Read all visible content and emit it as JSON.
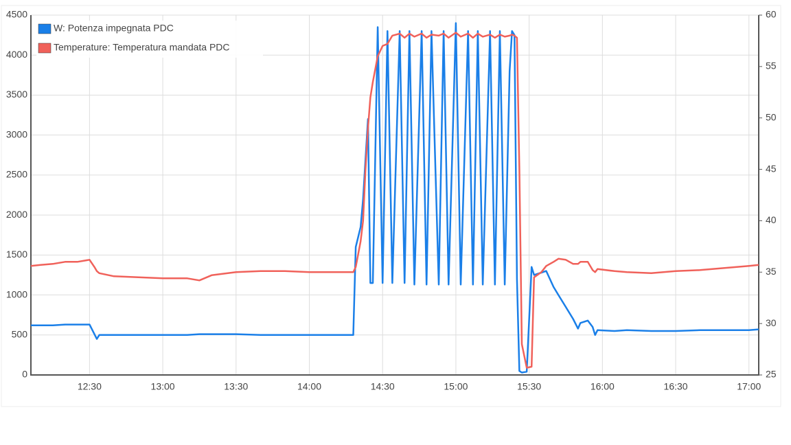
{
  "chart_data": {
    "type": "line",
    "x": [
      "12:06",
      "12:10",
      "12:15",
      "12:20",
      "12:25",
      "12:30",
      "12:32",
      "12:33",
      "12:34",
      "12:40",
      "12:50",
      "13:00",
      "13:10",
      "13:15",
      "13:20",
      "13:30",
      "13:40",
      "13:50",
      "14:00",
      "14:10",
      "14:18",
      "14:19",
      "14:21",
      "14:22",
      "14:23",
      "14:24",
      "14:25",
      "14:26",
      "14:28",
      "14:30",
      "14:32",
      "14:34",
      "14:37",
      "14:39",
      "14:41",
      "14:43",
      "14:46",
      "14:48",
      "14:50",
      "14:53",
      "14:55",
      "14:57",
      "15:00",
      "15:02",
      "15:05",
      "15:07",
      "15:09",
      "15:11",
      "15:14",
      "15:16",
      "15:18",
      "15:20",
      "15:22",
      "15:23",
      "15:24",
      "15:25",
      "15:26",
      "15:27",
      "15:29",
      "15:31",
      "15:32",
      "15:35",
      "15:37",
      "15:40",
      "15:42",
      "15:45",
      "15:48",
      "15:50",
      "15:51",
      "15:54",
      "15:56",
      "15:57",
      "15:58",
      "16:05",
      "16:10",
      "16:20",
      "16:30",
      "16:40",
      "16:50",
      "17:00",
      "17:04"
    ],
    "series": [
      {
        "name": "W: Potenza impegnata PDC",
        "color": "#1a7fe8",
        "values": [
          620,
          620,
          620,
          630,
          630,
          630,
          510,
          450,
          500,
          500,
          500,
          500,
          500,
          510,
          510,
          510,
          500,
          500,
          500,
          500,
          500,
          1600,
          1850,
          2200,
          2700,
          3200,
          1150,
          1150,
          4350,
          1150,
          4300,
          1150,
          4300,
          1150,
          4300,
          1130,
          4300,
          1130,
          4300,
          1130,
          4300,
          1130,
          4400,
          1130,
          4300,
          1130,
          4300,
          1130,
          4300,
          1130,
          4300,
          1130,
          3800,
          4300,
          4250,
          1200,
          50,
          30,
          40,
          1350,
          1250,
          1280,
          1300,
          1100,
          1000,
          850,
          700,
          580,
          650,
          680,
          600,
          500,
          560,
          550,
          560,
          550,
          550,
          560,
          560,
          560,
          570
        ]
      },
      {
        "name": "Temperature: Temperatura mandata PDC",
        "color": "#f0615a",
        "axis": "y2",
        "values": [
          35.6,
          35.7,
          35.8,
          36.0,
          36.0,
          36.2,
          35.5,
          35.1,
          34.9,
          34.6,
          34.5,
          34.4,
          34.4,
          34.2,
          34.7,
          35.0,
          35.1,
          35.1,
          35.0,
          35.0,
          35.0,
          35.5,
          38.0,
          40.0,
          45.0,
          49.0,
          52.0,
          53.5,
          56.0,
          57.0,
          57.2,
          58.0,
          58.2,
          57.8,
          58.2,
          57.9,
          58.2,
          57.8,
          58.1,
          58.0,
          58.2,
          57.8,
          58.3,
          57.9,
          58.2,
          57.8,
          58.2,
          57.9,
          58.1,
          57.8,
          58.1,
          57.9,
          58.0,
          58.1,
          58.0,
          57.8,
          45.0,
          28.0,
          25.7,
          25.8,
          34.5,
          35.0,
          35.6,
          36.0,
          36.3,
          36.2,
          35.8,
          35.8,
          36.0,
          36.0,
          35.2,
          35.0,
          35.3,
          35.1,
          35.0,
          34.9,
          35.1,
          35.2,
          35.4,
          35.6,
          35.7
        ]
      }
    ],
    "xlim": [
      "12:06",
      "17:04"
    ],
    "xticks": [
      "12:30",
      "13:00",
      "13:30",
      "14:00",
      "14:30",
      "15:00",
      "15:30",
      "16:00",
      "16:30",
      "17:00"
    ],
    "ylim": [
      0,
      4500
    ],
    "yticks": [
      0,
      500,
      1000,
      1500,
      2000,
      2500,
      3000,
      3500,
      4000,
      4500
    ],
    "y2lim": [
      25,
      60
    ],
    "y2ticks": [
      25,
      30,
      35,
      40,
      45,
      50,
      55,
      60
    ],
    "grid": true,
    "legend": "top-left"
  }
}
